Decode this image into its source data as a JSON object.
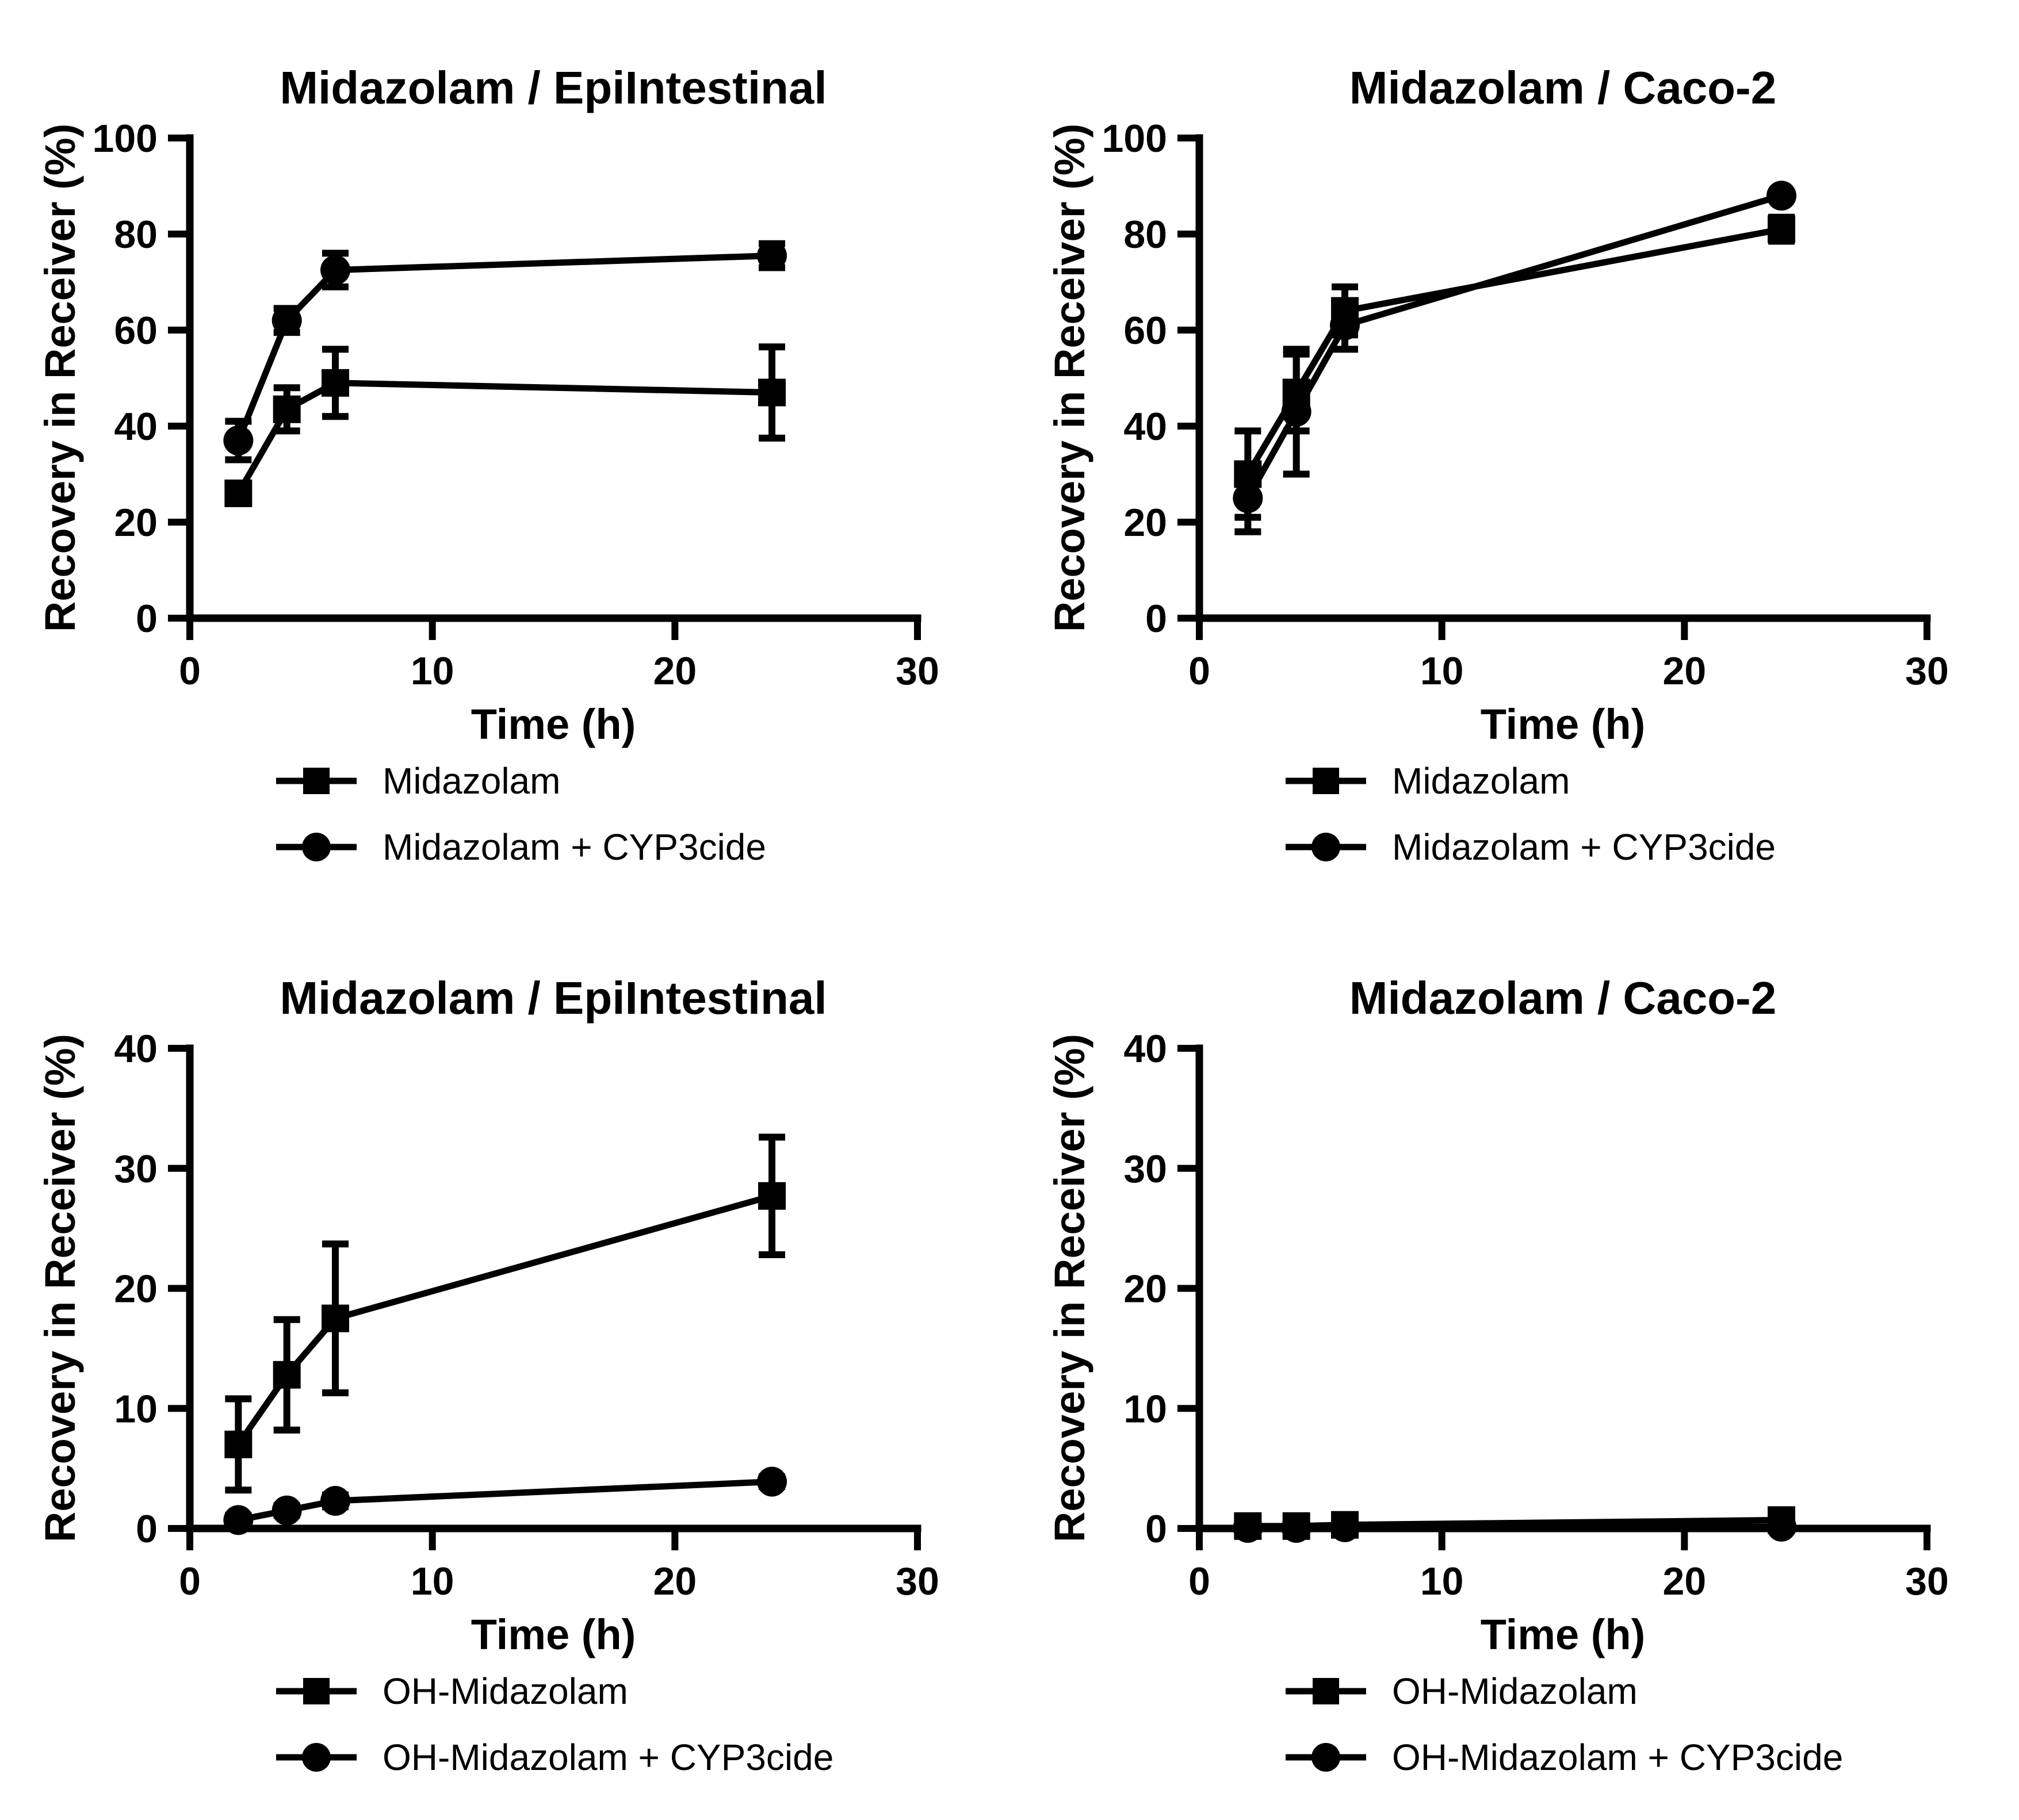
{
  "page": {
    "background_color": "#ffffff",
    "foreground_color": "#000000"
  },
  "icons": {
    "square_marker": "■",
    "circle_marker": "●"
  },
  "chart_data": [
    {
      "type": "line",
      "title": "Midazolam / EpiIntestinal",
      "xlabel": "Time (h)",
      "ylabel": "Recovery in Receiver (%)",
      "xlim": [
        0,
        30
      ],
      "ylim": [
        0,
        100
      ],
      "xticks": [
        0,
        10,
        20,
        30
      ],
      "yticks": [
        0,
        20,
        40,
        60,
        80,
        100
      ],
      "grid": false,
      "legend_position": "below-left",
      "x": [
        2,
        4,
        6,
        24
      ],
      "series": [
        {
          "name": "Midazolam",
          "marker": "square",
          "color": "#000000",
          "values": [
            26,
            43.5,
            49,
            47
          ],
          "errors": [
            2,
            4.5,
            7,
            9.5
          ]
        },
        {
          "name": "Midazolam + CYP3cide",
          "marker": "circle",
          "color": "#000000",
          "values": [
            37,
            62,
            72.5,
            75.5
          ],
          "errors": [
            4,
            2.5,
            3.5,
            2.5
          ]
        }
      ]
    },
    {
      "type": "line",
      "title": "Midazolam / Caco-2",
      "xlabel": "Time (h)",
      "ylabel": "Recovery in Receiver (%)",
      "xlim": [
        0,
        30
      ],
      "ylim": [
        0,
        100
      ],
      "xticks": [
        0,
        10,
        20,
        30
      ],
      "yticks": [
        0,
        20,
        40,
        60,
        80,
        100
      ],
      "grid": false,
      "legend_position": "below-left",
      "x": [
        2,
        4,
        6,
        24
      ],
      "series": [
        {
          "name": "Midazolam",
          "marker": "square",
          "color": "#000000",
          "values": [
            30,
            47,
            64,
            81
          ],
          "errors": [
            9,
            8,
            5,
            2.5
          ]
        },
        {
          "name": "Midazolam + CYP3cide",
          "marker": "circle",
          "color": "#000000",
          "values": [
            25,
            43,
            61,
            88
          ],
          "errors": [
            7,
            13,
            5,
            0
          ]
        }
      ]
    },
    {
      "type": "line",
      "title": "Midazolam / EpiIntestinal",
      "xlabel": "Time (h)",
      "ylabel": "Recovery in Receiver (%)",
      "xlim": [
        0,
        30
      ],
      "ylim": [
        0,
        40
      ],
      "xticks": [
        0,
        10,
        20,
        30
      ],
      "yticks": [
        0,
        10,
        20,
        30,
        40
      ],
      "grid": false,
      "legend_position": "below-left",
      "x": [
        2,
        4,
        6,
        24
      ],
      "series": [
        {
          "name": "OH-Midazolam",
          "marker": "square",
          "color": "#000000",
          "values": [
            7,
            12.8,
            17.5,
            27.7
          ],
          "errors": [
            3.8,
            4.6,
            6.2,
            4.9
          ]
        },
        {
          "name": "OH-Midazolam + CYP3cide",
          "marker": "circle",
          "color": "#000000",
          "values": [
            0.7,
            1.5,
            2.3,
            3.9
          ],
          "errors": [
            0.4,
            0.4,
            0.5,
            0.4
          ]
        }
      ]
    },
    {
      "type": "line",
      "title": "Midazolam / Caco-2",
      "xlabel": "Time (h)",
      "ylabel": "Recovery in Receiver (%)",
      "xlim": [
        0,
        30
      ],
      "ylim": [
        0,
        40
      ],
      "xticks": [
        0,
        10,
        20,
        30
      ],
      "yticks": [
        0,
        10,
        20,
        30,
        40
      ],
      "grid": false,
      "legend_position": "below-left",
      "x": [
        2,
        4,
        6,
        24
      ],
      "series": [
        {
          "name": "OH-Midazolam",
          "marker": "square",
          "color": "#000000",
          "values": [
            0.2,
            0.2,
            0.3,
            0.7
          ],
          "errors": [
            0.3,
            0.4,
            0.5,
            0.3
          ]
        },
        {
          "name": "OH-Midazolam + CYP3cide",
          "marker": "circle",
          "color": "#000000",
          "values": [
            0.05,
            0.05,
            0.1,
            0.15
          ],
          "errors": [
            0,
            0,
            0,
            0
          ]
        }
      ]
    }
  ]
}
